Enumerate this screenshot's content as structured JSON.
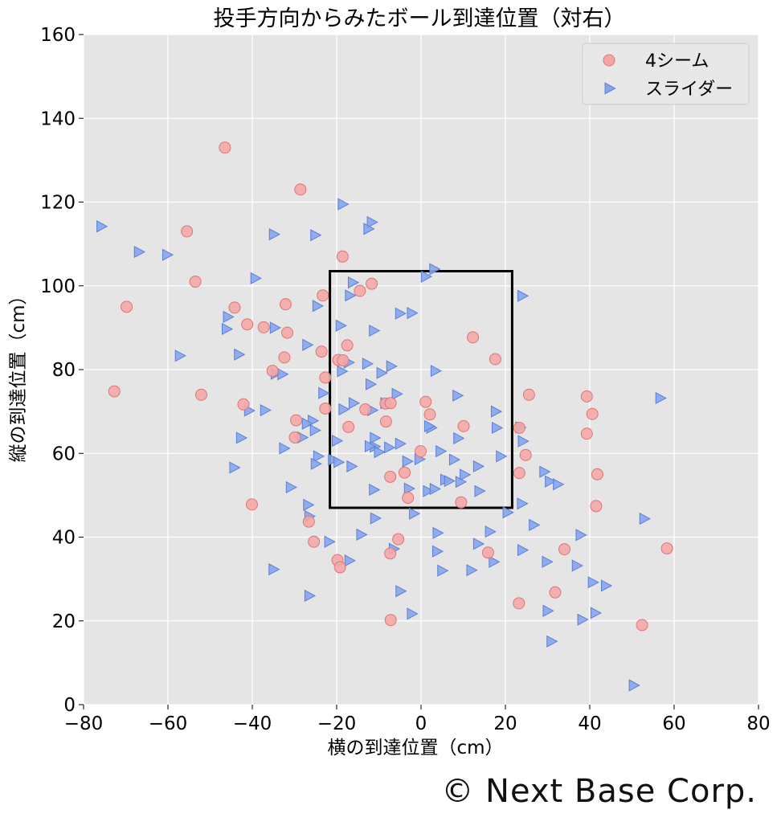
{
  "credit": "© Next Base Corp.",
  "chart_data": {
    "type": "scatter",
    "title": "投手方向からみたボール到達位置（対右）",
    "xlabel": "横の到達位置（cm）",
    "ylabel": "縦の到達位置（cm）",
    "xlim": [
      -80,
      80
    ],
    "ylim": [
      0,
      160
    ],
    "xticks": [
      -80,
      -60,
      -40,
      -20,
      0,
      20,
      40,
      60,
      80
    ],
    "xtick_labels": [
      "−80",
      "−60",
      "−40",
      "−20",
      "0",
      "20",
      "40",
      "60",
      "80"
    ],
    "yticks": [
      0,
      20,
      40,
      60,
      80,
      100,
      120,
      140,
      160
    ],
    "ytick_labels": [
      "0",
      "20",
      "40",
      "60",
      "80",
      "100",
      "120",
      "140",
      "160"
    ],
    "grid": true,
    "legend_position": "top-right",
    "strike_zone": {
      "x": [
        -21.6,
        21.6
      ],
      "y": [
        47,
        103.5
      ]
    },
    "colors": {
      "background": "#e5e5e5",
      "grid": "#ffffff",
      "four_seam_fill": "#f4a7a7",
      "four_seam_edge": "#e07474",
      "slider_fill": "#86a5ec",
      "slider_edge": "#5b7fd8"
    },
    "series": [
      {
        "name": "4シーム",
        "marker": "circle",
        "points": [
          [
            -46.5,
            133
          ],
          [
            -28.6,
            123
          ],
          [
            -55.5,
            113
          ],
          [
            -18.6,
            107
          ],
          [
            -53.5,
            101
          ],
          [
            -11.7,
            100.5
          ],
          [
            -69.8,
            95
          ],
          [
            -14.5,
            98.8
          ],
          [
            -44.2,
            94.8
          ],
          [
            -23.3,
            97.7
          ],
          [
            -32.1,
            95.6
          ],
          [
            -41.2,
            90.8
          ],
          [
            -37.3,
            90.1
          ],
          [
            -31.7,
            88.8
          ],
          [
            -17.5,
            85.8
          ],
          [
            -23.6,
            84.3
          ],
          [
            -32.4,
            82.9
          ],
          [
            -19.6,
            82.3
          ],
          [
            -18.5,
            82.2
          ],
          [
            -35.2,
            79.7
          ],
          [
            -22.7,
            78.1
          ],
          [
            -72.7,
            74.8
          ],
          [
            -52.1,
            74
          ],
          [
            -42.1,
            71.7
          ],
          [
            -22.7,
            70.7
          ],
          [
            -13.2,
            70.5
          ],
          [
            -8.4,
            71.9
          ],
          [
            -7.2,
            72
          ],
          [
            1.1,
            72.3
          ],
          [
            -29.6,
            67.9
          ],
          [
            -8.3,
            67.6
          ],
          [
            -17.2,
            66.3
          ],
          [
            2.1,
            69.3
          ],
          [
            10.1,
            66.5
          ],
          [
            -29.9,
            63.8
          ],
          [
            -0.1,
            60.5
          ],
          [
            12.3,
            87.7
          ],
          [
            17.6,
            82.5
          ],
          [
            23.3,
            66.1
          ],
          [
            25.6,
            74
          ],
          [
            24.8,
            59.6
          ],
          [
            23.3,
            55.3
          ],
          [
            39.3,
            73.6
          ],
          [
            40.6,
            69.4
          ],
          [
            39.3,
            64.7
          ],
          [
            41.8,
            55
          ],
          [
            41.5,
            47.4
          ],
          [
            9.5,
            48.3
          ],
          [
            -3.1,
            49.4
          ],
          [
            -7.3,
            54.4
          ],
          [
            -3.9,
            55.4
          ],
          [
            -40.1,
            47.8
          ],
          [
            -26.6,
            43.7
          ],
          [
            -25.4,
            38.9
          ],
          [
            -5.4,
            39.5
          ],
          [
            -7.3,
            36.1
          ],
          [
            -19.8,
            34.5
          ],
          [
            -19.2,
            32.8
          ],
          [
            15.9,
            36.3
          ],
          [
            34,
            37.1
          ],
          [
            23.2,
            24.2
          ],
          [
            31.8,
            26.8
          ],
          [
            -7.2,
            20.2
          ],
          [
            52.4,
            19
          ],
          [
            58.3,
            37.3
          ]
        ]
      },
      {
        "name": "スライダー",
        "marker": "triangle-right",
        "points": [
          [
            -75.9,
            114.2
          ],
          [
            -67,
            108.1
          ],
          [
            -60.3,
            107.4
          ],
          [
            -18.7,
            119.5
          ],
          [
            -11.8,
            115.2
          ],
          [
            -12.6,
            113.6
          ],
          [
            -35,
            112.3
          ],
          [
            -25.2,
            112.1
          ],
          [
            -39.4,
            101.8
          ],
          [
            3,
            104
          ],
          [
            1,
            102.2
          ],
          [
            -16.3,
            100.8
          ],
          [
            -17,
            97.7
          ],
          [
            23.9,
            97.6
          ],
          [
            -24.7,
            95.2
          ],
          [
            -45.9,
            92.6
          ],
          [
            -46.2,
            89.7
          ],
          [
            -5.1,
            93.4
          ],
          [
            -2.3,
            93.5
          ],
          [
            -34.8,
            90
          ],
          [
            -11.3,
            89.3
          ],
          [
            -19.2,
            90.5
          ],
          [
            -57.3,
            83.3
          ],
          [
            -43.3,
            83.6
          ],
          [
            -27.1,
            85.9
          ],
          [
            -17.3,
            81.7
          ],
          [
            -12.9,
            81.4
          ],
          [
            -7.2,
            80.8
          ],
          [
            -34.6,
            79
          ],
          [
            -33,
            78.9
          ],
          [
            -18.9,
            79.6
          ],
          [
            -9.5,
            79.2
          ],
          [
            3.3,
            79.7
          ],
          [
            -12.1,
            76.5
          ],
          [
            -5.9,
            74.2
          ],
          [
            8.5,
            73.8
          ],
          [
            -23.3,
            74.4
          ],
          [
            -16.1,
            72
          ],
          [
            -8.6,
            72
          ],
          [
            -11.7,
            70.3
          ],
          [
            -18.5,
            70.5
          ],
          [
            -40.9,
            70.2
          ],
          [
            -37.1,
            70.3
          ],
          [
            -25.8,
            67.8
          ],
          [
            -27.2,
            67.1
          ],
          [
            -25.3,
            65.5
          ],
          [
            -28.3,
            63.8
          ],
          [
            -42.8,
            63.7
          ],
          [
            -20.1,
            63
          ],
          [
            -11.1,
            63.7
          ],
          [
            -11.1,
            61.6
          ],
          [
            -12.3,
            61.7
          ],
          [
            -7.7,
            61.4
          ],
          [
            -5.1,
            62.3
          ],
          [
            -10.1,
            60.3
          ],
          [
            2.3,
            66.1
          ],
          [
            1.8,
            66.5
          ],
          [
            17.6,
            70
          ],
          [
            17.8,
            66.1
          ],
          [
            23.4,
            66.2
          ],
          [
            24,
            62.9
          ],
          [
            8.7,
            63.6
          ],
          [
            4.5,
            60.5
          ],
          [
            -32.6,
            61.2
          ],
          [
            -24.5,
            59.3
          ],
          [
            -21,
            58.5
          ],
          [
            -19.7,
            57.9
          ],
          [
            -16.6,
            56.9
          ],
          [
            -25.1,
            57.5
          ],
          [
            -44.4,
            56.6
          ],
          [
            -3.4,
            58.1
          ],
          [
            -0.5,
            58.6
          ],
          [
            7.7,
            58.5
          ],
          [
            10.2,
            54.9
          ],
          [
            9.2,
            53.2
          ],
          [
            5.6,
            53.7
          ],
          [
            6.5,
            53.4
          ],
          [
            13.4,
            56.9
          ],
          [
            18.8,
            59.3
          ],
          [
            -3,
            51.6
          ],
          [
            1.5,
            51
          ],
          [
            3.1,
            51.5
          ],
          [
            -11.3,
            51.3
          ],
          [
            13.7,
            51
          ],
          [
            20.4,
            45.9
          ],
          [
            23.8,
            48
          ],
          [
            29.1,
            55.6
          ],
          [
            30.4,
            53.3
          ],
          [
            32.3,
            52.6
          ],
          [
            -31,
            51.9
          ],
          [
            -26.9,
            47.7
          ],
          [
            -26.6,
            45
          ],
          [
            -11,
            44.5
          ],
          [
            -1.8,
            45.6
          ],
          [
            26.6,
            42.9
          ],
          [
            16.2,
            41.3
          ],
          [
            3.8,
            41
          ],
          [
            -14.3,
            40.6
          ],
          [
            -21.9,
            38.9
          ],
          [
            13.4,
            38.4
          ],
          [
            37.7,
            40.5
          ],
          [
            -35.1,
            32.3
          ],
          [
            -17.1,
            34.4
          ],
          [
            -6.6,
            37.2
          ],
          [
            3.7,
            36.6
          ],
          [
            11.8,
            32.1
          ],
          [
            4.9,
            32
          ],
          [
            17.1,
            34.1
          ],
          [
            23.9,
            36.9
          ],
          [
            29.7,
            34.1
          ],
          [
            36.8,
            33.2
          ],
          [
            40.6,
            29.2
          ],
          [
            43.7,
            28.4
          ],
          [
            -26.6,
            26
          ],
          [
            -5,
            27.1
          ],
          [
            -2.3,
            21.7
          ],
          [
            29.9,
            22.4
          ],
          [
            38.1,
            20.3
          ],
          [
            41.2,
            21.9
          ],
          [
            30.8,
            15.1
          ],
          [
            50.3,
            4.6
          ],
          [
            52.8,
            44.4
          ],
          [
            56.6,
            73.2
          ]
        ]
      }
    ]
  }
}
